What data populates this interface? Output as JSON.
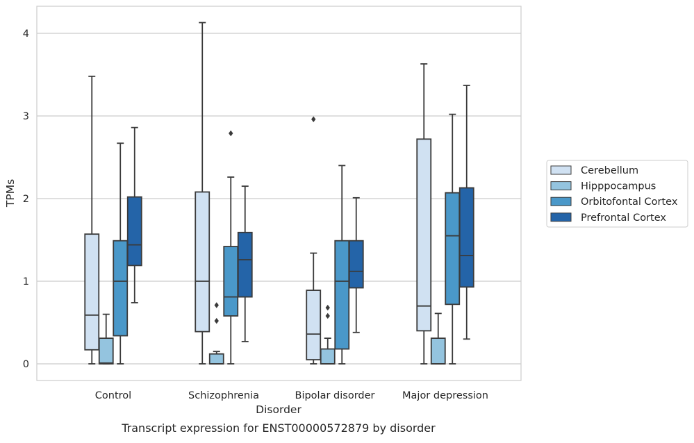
{
  "chart_data": {
    "type": "boxplot",
    "title": "Transcript expression for ENST00000572879 by disorder",
    "xlabel": "Disorder",
    "ylabel": "TPMs",
    "ylim": [
      -0.2,
      4.33
    ],
    "yticks": [
      0,
      1,
      2,
      3,
      4
    ],
    "ytick_labels": [
      "0",
      "1",
      "2",
      "3",
      "4"
    ],
    "grid": "horizontal",
    "legend_position": "right",
    "categories": [
      "Control",
      "Schizophrenia",
      "Bipolar disorder",
      "Major depression"
    ],
    "series": [
      {
        "name": "Cerebellum",
        "color": "#d0e1f2",
        "boxes": [
          {
            "whislo": 0.0,
            "q1": 0.17,
            "med": 0.59,
            "q3": 1.57,
            "whishi": 3.48,
            "fliers": []
          },
          {
            "whislo": 0.0,
            "q1": 0.39,
            "med": 1.0,
            "q3": 2.08,
            "whishi": 4.13,
            "fliers": []
          },
          {
            "whislo": 0.0,
            "q1": 0.05,
            "med": 0.36,
            "q3": 0.89,
            "whishi": 1.34,
            "fliers": [
              2.96
            ]
          },
          {
            "whislo": 0.0,
            "q1": 0.4,
            "med": 0.7,
            "q3": 2.72,
            "whishi": 3.63,
            "fliers": []
          }
        ]
      },
      {
        "name": "Hipppocampus",
        "color": "#94c4df",
        "boxes": [
          {
            "whislo": 0.0,
            "q1": 0.0,
            "med": 0.01,
            "q3": 0.31,
            "whishi": 0.6,
            "fliers": []
          },
          {
            "whislo": 0.0,
            "q1": 0.0,
            "med": 0.0,
            "q3": 0.12,
            "whishi": 0.15,
            "fliers": [
              0.52,
              0.71
            ]
          },
          {
            "whislo": 0.0,
            "q1": 0.0,
            "med": 0.0,
            "q3": 0.18,
            "whishi": 0.31,
            "fliers": [
              0.58,
              0.68
            ]
          },
          {
            "whislo": 0.0,
            "q1": 0.0,
            "med": 0.0,
            "q3": 0.31,
            "whishi": 0.61,
            "fliers": []
          }
        ]
      },
      {
        "name": "Orbitofontal Cortex",
        "color": "#4a98c9",
        "boxes": [
          {
            "whislo": 0.0,
            "q1": 0.34,
            "med": 1.0,
            "q3": 1.49,
            "whishi": 2.67,
            "fliers": []
          },
          {
            "whislo": 0.0,
            "q1": 0.58,
            "med": 0.81,
            "q3": 1.42,
            "whishi": 2.26,
            "fliers": [
              2.79
            ]
          },
          {
            "whislo": 0.0,
            "q1": 0.18,
            "med": 1.0,
            "q3": 1.49,
            "whishi": 2.4,
            "fliers": []
          },
          {
            "whislo": 0.0,
            "q1": 0.72,
            "med": 1.55,
            "q3": 2.07,
            "whishi": 3.02,
            "fliers": []
          }
        ]
      },
      {
        "name": "Prefrontal Cortex",
        "color": "#2464a8",
        "boxes": [
          {
            "whislo": 0.74,
            "q1": 1.19,
            "med": 1.44,
            "q3": 2.02,
            "whishi": 2.86,
            "fliers": []
          },
          {
            "whislo": 0.27,
            "q1": 0.81,
            "med": 1.26,
            "q3": 1.59,
            "whishi": 2.15,
            "fliers": []
          },
          {
            "whislo": 0.38,
            "q1": 0.92,
            "med": 1.12,
            "q3": 1.49,
            "whishi": 2.01,
            "fliers": []
          },
          {
            "whislo": 0.3,
            "q1": 0.93,
            "med": 1.31,
            "q3": 2.13,
            "whishi": 3.37,
            "fliers": []
          }
        ]
      }
    ]
  }
}
